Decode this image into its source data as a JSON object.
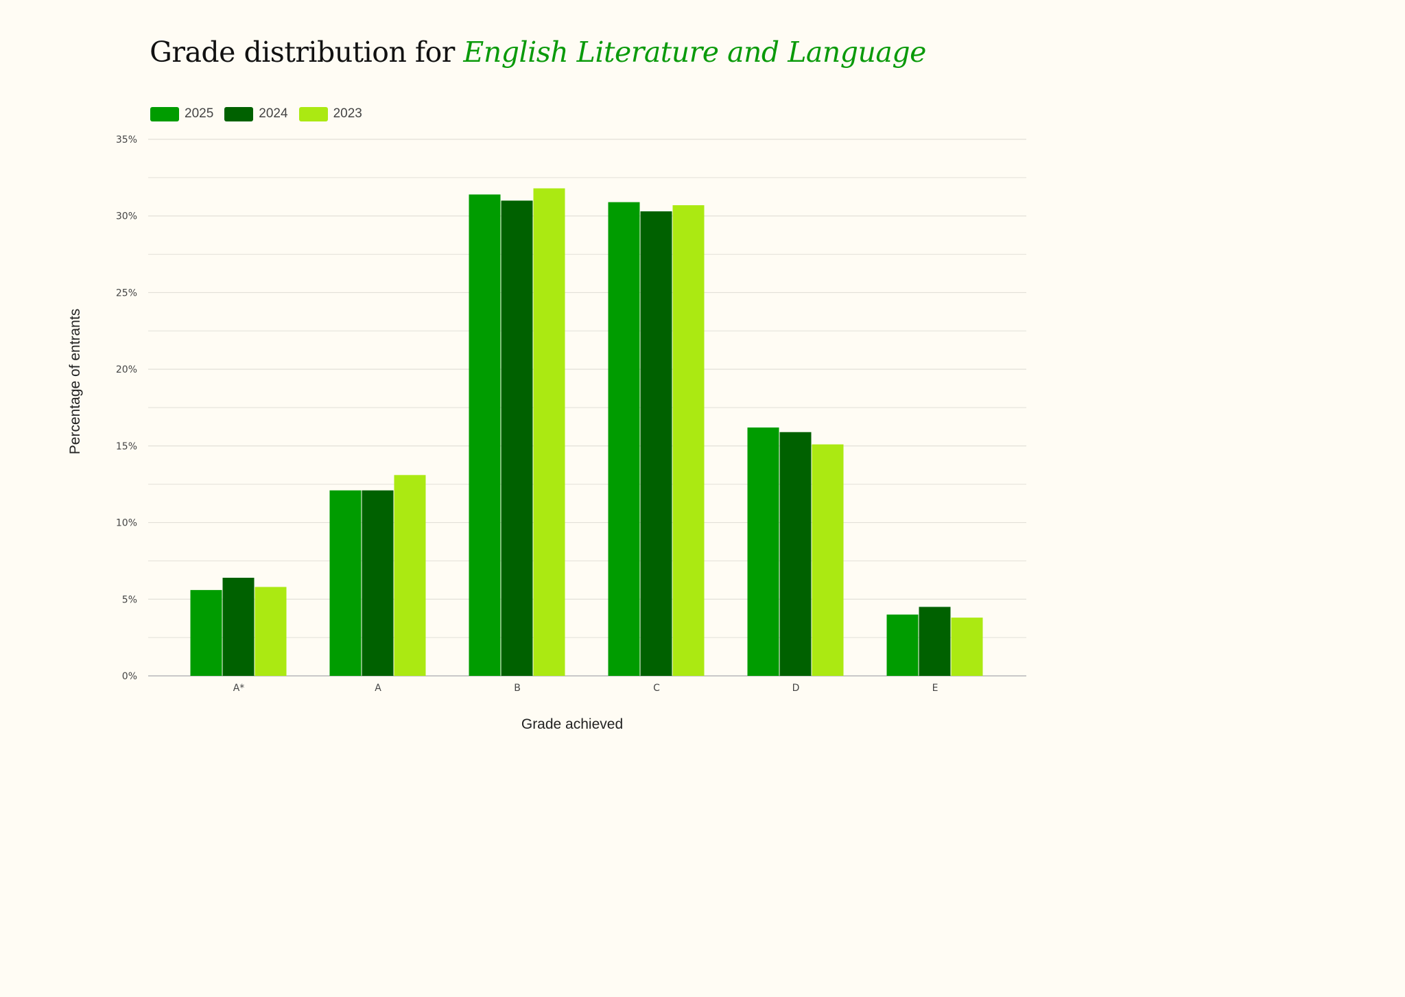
{
  "title": {
    "prefix": "Grade distribution for ",
    "subject": "English Literature and Language"
  },
  "colors": {
    "background": "#fffcf4",
    "title_accent": "#0a9a0a",
    "grid": "#e2e0d8",
    "axis": "#c8c8c8"
  },
  "chart_data": {
    "type": "bar",
    "title": "Grade distribution for English Literature and Language",
    "xlabel": "Grade achieved",
    "ylabel": "Percentage of entrants",
    "categories": [
      "A*",
      "A",
      "B",
      "C",
      "D",
      "E"
    ],
    "series": [
      {
        "name": "2025",
        "color": "#009c00",
        "values": [
          5.6,
          12.1,
          31.4,
          30.9,
          16.2,
          4.0
        ]
      },
      {
        "name": "2024",
        "color": "#006100",
        "values": [
          6.4,
          12.1,
          31.0,
          30.3,
          15.9,
          4.5
        ]
      },
      {
        "name": "2023",
        "color": "#abe912",
        "values": [
          5.8,
          13.1,
          31.8,
          30.7,
          15.1,
          3.8
        ]
      }
    ],
    "ylim": [
      0,
      35
    ],
    "yticks": [
      0,
      5,
      10,
      15,
      20,
      25,
      30,
      35
    ],
    "ytick_labels": [
      "0%",
      "5%",
      "10%",
      "15%",
      "20%",
      "25%",
      "30%",
      "35%"
    ],
    "minor_gridlines": true,
    "legend_position": "top-left"
  }
}
